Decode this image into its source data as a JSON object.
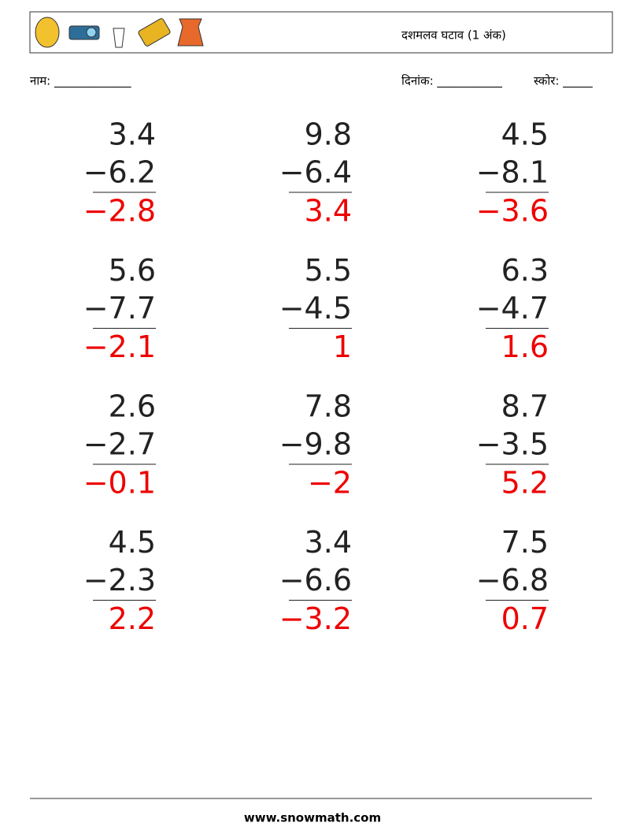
{
  "header": {
    "title": "दशमलव घटाव (1 अंक)"
  },
  "fields": {
    "name": "नाम: _____________",
    "date": "दिनांक: ___________",
    "score": "स्कोर: _____"
  },
  "problems": [
    {
      "top": "3.4",
      "bottom": "−6.2",
      "answer": "−2.8"
    },
    {
      "top": "9.8",
      "bottom": "−6.4",
      "answer": "3.4"
    },
    {
      "top": "4.5",
      "bottom": "−8.1",
      "answer": "−3.6"
    },
    {
      "top": "5.6",
      "bottom": "−7.7",
      "answer": "−2.1"
    },
    {
      "top": "5.5",
      "bottom": "−4.5",
      "answer": "1"
    },
    {
      "top": "6.3",
      "bottom": "−4.7",
      "answer": "1.6"
    },
    {
      "top": "2.6",
      "bottom": "−2.7",
      "answer": "−0.1"
    },
    {
      "top": "7.8",
      "bottom": "−9.8",
      "answer": "−2"
    },
    {
      "top": "8.7",
      "bottom": "−3.5",
      "answer": "5.2"
    },
    {
      "top": "4.5",
      "bottom": "−2.3",
      "answer": "2.2"
    },
    {
      "top": "3.4",
      "bottom": "−6.6",
      "answer": "−3.2"
    },
    {
      "top": "7.5",
      "bottom": "−6.8",
      "answer": "0.7"
    }
  ],
  "footer": {
    "site": "www.snowmath.com"
  }
}
